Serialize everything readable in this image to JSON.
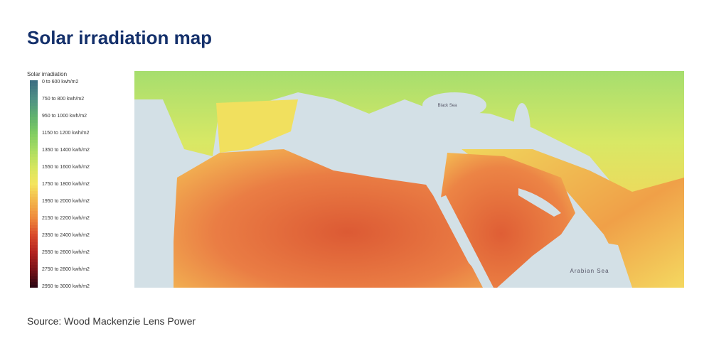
{
  "header": {
    "title": "Solar irradiation map"
  },
  "legend": {
    "title": "Solar irradiation",
    "items": [
      {
        "label": "0 to 600 kwh/m2",
        "color": "#3d6f82"
      },
      {
        "label": "750 to 800 kwh/m2",
        "color": "#4f8f86"
      },
      {
        "label": "950 to 1000 kwh/m2",
        "color": "#5fb070"
      },
      {
        "label": "1150 to 1200 kwh/m2",
        "color": "#7fcc62"
      },
      {
        "label": "1350 to 1400 kwh/m2",
        "color": "#a9dc62"
      },
      {
        "label": "1550 to 1600 kwh/m2",
        "color": "#d5e65e"
      },
      {
        "label": "1750 to 1800 kwh/m2",
        "color": "#f4e55e"
      },
      {
        "label": "1950 to 2000 kwh/m2",
        "color": "#f3b54a"
      },
      {
        "label": "2150 to 2200 kwh/m2",
        "color": "#ee8a3c"
      },
      {
        "label": "2350 to 2400 kwh/m2",
        "color": "#d94a2b"
      },
      {
        "label": "2550 to 2600 kwh/m2",
        "color": "#b42320"
      },
      {
        "label": "2750 to 2800 kwh/m2",
        "color": "#7a1218"
      },
      {
        "label": "2950 to 3000 kwh/m2",
        "color": "#2e0512"
      }
    ]
  },
  "map": {
    "labels": [
      "Black Sea",
      "Arabian Sea"
    ]
  },
  "footer": {
    "source": "Source: Wood Mackenzie Lens Power"
  }
}
